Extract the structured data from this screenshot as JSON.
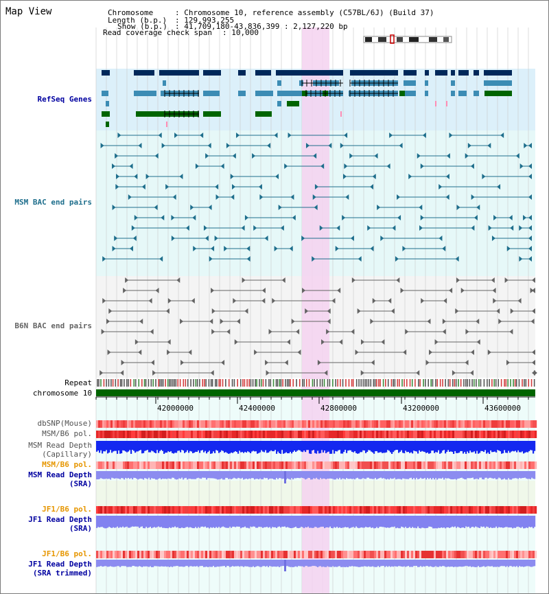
{
  "app_title": "Map View",
  "header": {
    "chromosome_label": "Chromosome",
    "chromosome_value": ": Chromosome 10, reference assembly (C57BL/6J) (Build 37)",
    "length_label": "Length (b.p.)",
    "length_value": ": 129,993,255",
    "show_label": "Show (b.p.)",
    "show_value": ": 41,709,180-43,836,399 : 2,127,220 bp",
    "coverage_label": "Read coverage check span",
    "coverage_value": ": 10,000"
  },
  "tracks": {
    "refseq_genes": "RefSeq Genes",
    "msm_bac": "MSM BAC end pairs",
    "b6n_bac": "B6N BAC end pairs",
    "repeat": "Repeat",
    "chromosome": "chromosome 10",
    "dbsnp": "dbSNP(Mouse)",
    "msm_b6_pol_1": "MSM/B6 pol.",
    "msm_depth_cap_1": "MSM Read Depth",
    "msm_depth_cap_2": "(Capillary)",
    "msm_b6_pol_2": "MSM/B6 pol.",
    "msm_depth_sra_1": "MSM Read Depth",
    "msm_depth_sra_2": "(SRA)",
    "jf1_b6_pol_1": "JF1/B6 pol.",
    "jf1_depth_sra_1": "JF1 Read Depth",
    "jf1_depth_sra_2": "(SRA)",
    "jf1_b6_pol_2": "JF1/B6 pol.",
    "jf1_depth_trim_1": "JF1 Read Depth",
    "jf1_depth_trim_2": "(SRA trimmed)"
  },
  "axis_ticks": [
    "42000000",
    "42400000",
    "42800000",
    "43200000",
    "43600000"
  ],
  "colors": {
    "gene_dark": "#00285a",
    "gene_mid": "#3c8cb4",
    "gene_green": "#006400",
    "msm_bac": "#1e6e8c",
    "b6n_bac": "#646464",
    "highlight": "#f5d2f0",
    "refseq_bg": "#dcf0fa",
    "msm_bg": "#e6f8f8",
    "label_blue": "#0000a0",
    "label_orange": "#e69600"
  }
}
